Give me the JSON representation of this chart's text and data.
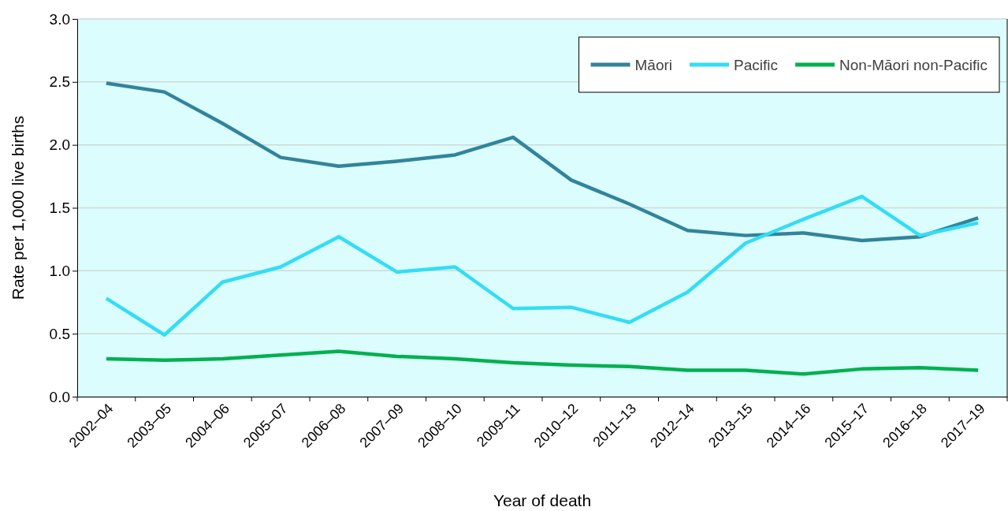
{
  "chart_data": {
    "type": "line",
    "xlabel": "Year of death",
    "ylabel": "Rate per 1,000 live births",
    "categories": [
      "2002–04",
      "2003–05",
      "2004–06",
      "2005–07",
      "2006–08",
      "2007–09",
      "2008–10",
      "2009–11",
      "2010–12",
      "2011–13",
      "2012–14",
      "2013–15",
      "2014–16",
      "2015–17",
      "2016–18",
      "2017–19"
    ],
    "series": [
      {
        "name": "Māori",
        "color": "#31849b",
        "values": [
          2.49,
          2.42,
          2.17,
          1.9,
          1.83,
          1.87,
          1.92,
          2.06,
          1.72,
          1.53,
          1.32,
          1.28,
          1.3,
          1.24,
          1.27,
          1.42
        ]
      },
      {
        "name": "Pacific",
        "color": "#33ddf5",
        "values": [
          0.78,
          0.49,
          0.91,
          1.03,
          1.27,
          0.99,
          1.03,
          0.7,
          0.71,
          0.59,
          0.83,
          1.22,
          1.41,
          1.59,
          1.28,
          1.38
        ]
      },
      {
        "name": "Non-Māori non-Pacific",
        "color": "#00b050",
        "values": [
          0.3,
          0.29,
          0.3,
          0.33,
          0.36,
          0.32,
          0.3,
          0.27,
          0.25,
          0.24,
          0.21,
          0.21,
          0.18,
          0.22,
          0.23,
          0.21
        ]
      }
    ],
    "ylim": [
      0,
      3
    ],
    "yticks": [
      {
        "value": 0,
        "label": "0.0"
      },
      {
        "value": 0.5,
        "label": "0.5"
      },
      {
        "value": 1,
        "label": "1.0"
      },
      {
        "value": 1.5,
        "label": "1.5"
      },
      {
        "value": 2,
        "label": "2.0"
      },
      {
        "value": 2.5,
        "label": "2.5"
      },
      {
        "value": 3,
        "label": "3.0"
      }
    ],
    "grid": "y",
    "legend": "top right",
    "marker": "none",
    "line_style": "solid"
  }
}
